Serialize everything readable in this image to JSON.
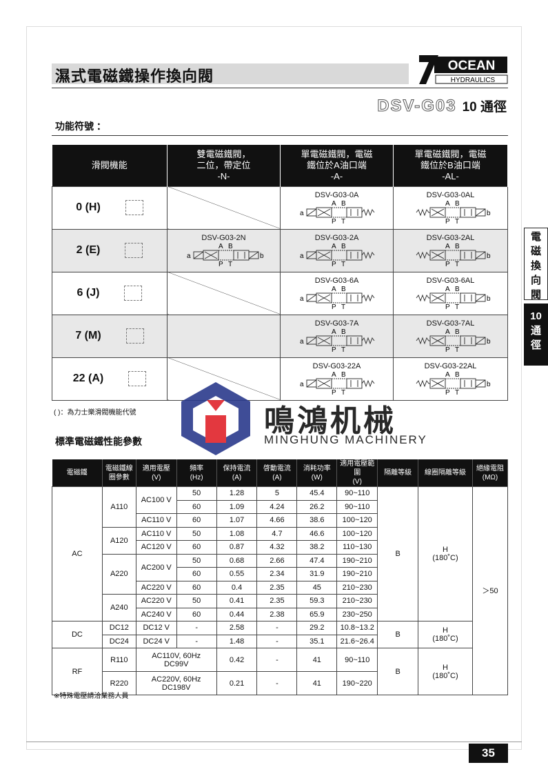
{
  "header": {
    "title": "濕式電磁鐵操作換向閥",
    "logo": {
      "brand": "OCEAN",
      "sub": "HYDRAULICS"
    },
    "model": "DSV-G03",
    "size_label": "10 通徑"
  },
  "section1": {
    "title": "功能符號 ："
  },
  "function_table": {
    "headers": [
      "滑閥機能",
      "雙電磁鐵閥，\n二位，帶定位\n-N-",
      "單電磁鐵閥，電磁\n鐵位於A油口端\n-A-",
      "單電磁鐵閥，電磁\n鐵位於B油口端\n-AL-"
    ],
    "rows": [
      {
        "function": "0 (H)",
        "n": "",
        "a": "DSV-G03-0A",
        "al": "DSV-G03-0AL"
      },
      {
        "function": "2 (E)",
        "n": "DSV-G03-2N",
        "a": "DSV-G03-2A",
        "al": "DSV-G03-2AL"
      },
      {
        "function": "6 (J)",
        "n": "",
        "a": "DSV-G03-6A",
        "al": "DSV-G03-6AL"
      },
      {
        "function": "7 (M)",
        "n": "",
        "a": "DSV-G03-7A",
        "al": "DSV-G03-7AL"
      },
      {
        "function": "22 (A)",
        "n": "",
        "a": "DSV-G03-22A",
        "al": "DSV-G03-22AL"
      }
    ],
    "port_labels": {
      "a": "a",
      "b": "b",
      "A": "A",
      "B": "B",
      "P": "P",
      "T": "T"
    },
    "note": "( )：為力士樂滑閥機能代號"
  },
  "section2": {
    "title": "標準電磁鐵性能參數"
  },
  "perf_table": {
    "headers": [
      "電磁鐵",
      "電磁鐵線\n圈參數",
      "適用電壓\n(V)",
      "頻率\n(Hz)",
      "保持電流\n(A)",
      "啓動電流\n(A)",
      "消耗功率\n(W)",
      "適用電壓範圍\n(V)",
      "隔離等級",
      "線圈隔離等級",
      "絕緣電阻\n(MΩ)"
    ],
    "ac": {
      "type": "AC",
      "rows": [
        {
          "coil": "A110",
          "volt": "AC100 V",
          "hz": "50",
          "hold": "1.28",
          "start": "5",
          "power": "45.4",
          "range": "90~110"
        },
        {
          "hz": "60",
          "hold": "1.09",
          "start": "4.24",
          "power": "26.2",
          "range": "90~110"
        },
        {
          "volt": "AC110 V",
          "hz": "60",
          "hold": "1.07",
          "start": "4.66",
          "power": "38.6",
          "range": "100~120"
        },
        {
          "coil": "A120",
          "volt": "AC110 V",
          "hz": "50",
          "hold": "1.08",
          "start": "4.7",
          "power": "46.6",
          "range": "100~120"
        },
        {
          "volt": "AC120 V",
          "hz": "60",
          "hold": "0.87",
          "start": "4.32",
          "power": "38.2",
          "range": "110~130"
        },
        {
          "coil": "A220",
          "volt": "AC200 V",
          "hz": "50",
          "hold": "0.68",
          "start": "2.66",
          "power": "47.4",
          "range": "190~210"
        },
        {
          "hz": "60",
          "hold": "0.55",
          "start": "2.34",
          "power": "31.9",
          "range": "190~210"
        },
        {
          "volt": "AC220 V",
          "hz": "60",
          "hold": "0.4",
          "start": "2.35",
          "power": "45",
          "range": "210~230"
        },
        {
          "coil": "A240",
          "volt": "AC220 V",
          "hz": "50",
          "hold": "0.41",
          "start": "2.35",
          "power": "59.3",
          "range": "210~230"
        },
        {
          "volt": "AC240 V",
          "hz": "60",
          "hold": "0.44",
          "start": "2.38",
          "power": "65.9",
          "range": "230~250"
        }
      ],
      "iso": "B",
      "coil_iso": "H\n(180˚C)"
    },
    "dc": {
      "type": "DC",
      "rows": [
        {
          "coil": "DC12",
          "volt": "DC12 V",
          "hz": "-",
          "hold": "2.58",
          "start": "-",
          "power": "29.2",
          "range": "10.8~13.2"
        },
        {
          "coil": "DC24",
          "volt": "DC24 V",
          "hz": "-",
          "hold": "1.48",
          "start": "-",
          "power": "35.1",
          "range": "21.6~26.4"
        }
      ],
      "iso": "B",
      "coil_iso": "H\n(180˚C)"
    },
    "rf": {
      "type": "RF",
      "rows": [
        {
          "coil": "R110",
          "volt": "AC110V, 60Hz\nDC99V",
          "hold": "0.42",
          "start": "-",
          "power": "41",
          "range": "90~110"
        },
        {
          "coil": "R220",
          "volt": "AC220V, 60Hz\nDC198V",
          "hold": "0.21",
          "start": "-",
          "power": "41",
          "range": "190~220"
        }
      ],
      "iso": "B",
      "coil_iso": "H\n(180˚C)"
    },
    "insulation": "＞50"
  },
  "footnote": "※特殊電壓請洽業務人員",
  "side_tabs": [
    "電\n磁\n換\n向\n閥",
    "10\n通\n徑"
  ],
  "page_number": "35",
  "watermark": {
    "cn": "鳴鴻机械",
    "en": "MINGHUNG MACHINERY",
    "colors": [
      "#2b3a8c",
      "#e0232b"
    ]
  }
}
